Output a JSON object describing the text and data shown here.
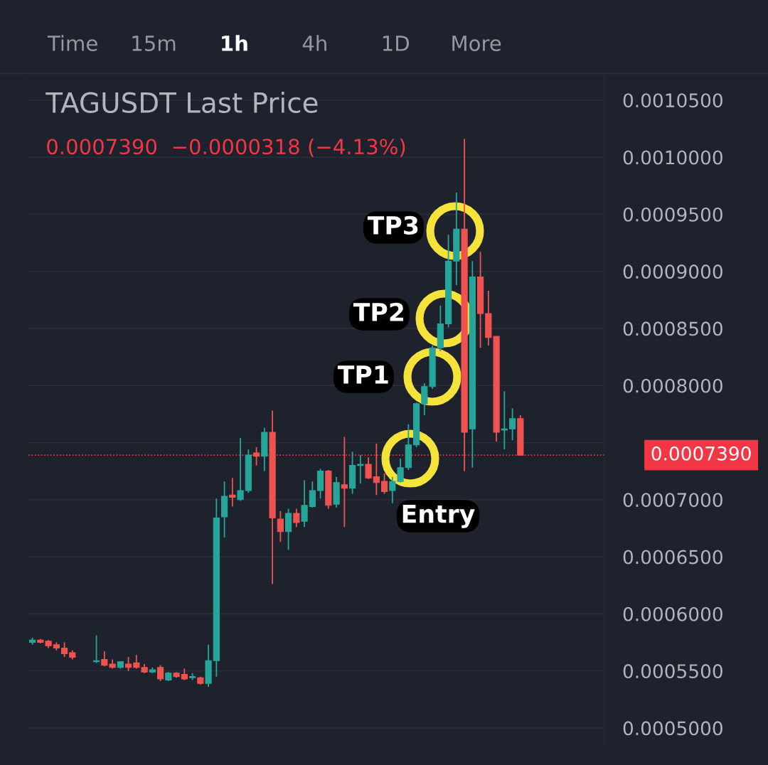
{
  "chart_data": {
    "type": "candlestick",
    "title": "TAGUSDT Last Price",
    "subtitle": "0.0007390  −0.0000318 (−4.13%)",
    "categories": [
      null,
      null,
      null,
      null,
      null,
      null,
      null,
      null,
      null,
      null,
      null,
      null,
      null,
      null,
      null,
      null,
      null,
      null,
      null,
      null,
      null,
      null,
      null,
      null,
      null,
      null,
      null,
      null,
      null,
      null,
      null,
      null,
      null,
      null,
      null,
      null,
      null,
      null,
      null,
      null,
      null,
      null,
      null,
      null,
      null,
      null,
      null,
      null,
      null,
      null,
      null,
      null,
      null,
      null,
      null,
      null,
      null,
      null,
      null,
      null,
      null,
      null,
      null,
      null,
      null,
      null,
      null,
      null,
      null,
      null,
      null,
      null
    ],
    "ohlc": [
      [
        0.000575,
        0.000579,
        0.000573,
        0.000577
      ],
      [
        0.000577,
        0.000578,
        0.000574,
        0.000575
      ],
      [
        0.000576,
        0.000577,
        0.00057,
        0.000572
      ],
      [
        0.000573,
        0.000575,
        0.000568,
        0.00057
      ],
      [
        0.00057,
        0.000575,
        0.000562,
        0.000565
      ],
      [
        0.000566,
        0.000568,
        0.00056,
        0.000562
      ],
      null,
      null,
      [
        0.000558,
        0.000581,
        0.000557,
        0.000559
      ],
      [
        0.00056,
        0.000567,
        0.000554,
        0.000555
      ],
      [
        0.000556,
        0.00056,
        0.000552,
        0.000553
      ],
      [
        0.000553,
        0.000558,
        0.000552,
        0.000558
      ],
      [
        0.000556,
        0.000562,
        0.00055,
        0.000553
      ],
      [
        0.000557,
        0.000564,
        0.000552,
        0.000553
      ],
      [
        0.000553,
        0.000556,
        0.000548,
        0.000549
      ],
      [
        0.000549,
        0.000553,
        0.000548,
        0.000551
      ],
      [
        0.000553,
        0.000555,
        0.000541,
        0.000543
      ],
      [
        0.000542,
        0.000549,
        0.000541,
        0.000548
      ],
      [
        0.000548,
        0.000549,
        0.000544,
        0.000545
      ],
      [
        0.000547,
        0.000552,
        0.000542,
        0.000543
      ],
      [
        0.000544,
        0.000548,
        0.000542,
        0.000545
      ],
      [
        0.000544,
        0.000545,
        0.000538,
        0.000539
      ],
      [
        0.000539,
        0.000573,
        0.000536,
        0.000559
      ],
      [
        0.000559,
        0.000701,
        0.000545,
        0.000684
      ],
      [
        0.000685,
        0.000716,
        0.000667,
        0.000703
      ],
      [
        0.000704,
        0.000719,
        0.000694,
        0.000702
      ],
      [
        0.0007,
        0.000754,
        0.000699,
        0.000708
      ],
      [
        0.000708,
        0.000744,
        0.000706,
        0.000739
      ],
      [
        0.000741,
        0.000746,
        0.00073,
        0.000738
      ],
      [
        0.000738,
        0.000763,
        0.000725,
        0.000759
      ],
      [
        0.000759,
        0.000778,
        0.000626,
        0.000684
      ],
      [
        0.000683,
        0.00069,
        0.000663,
        0.000672
      ],
      [
        0.000672,
        0.000692,
        0.000656,
        0.000688
      ],
      [
        0.000688,
        0.000692,
        0.000676,
        0.00068
      ],
      [
        0.000681,
        0.000717,
        0.000676,
        0.000695
      ],
      [
        0.000694,
        0.000716,
        0.000693,
        0.000708
      ],
      [
        0.000708,
        0.000727,
        0.000701,
        0.000725
      ],
      [
        0.000725,
        0.000726,
        0.000692,
        0.000695
      ],
      [
        0.000696,
        0.00072,
        0.000693,
        0.000715
      ],
      [
        0.000713,
        0.000755,
        0.000676,
        0.00071
      ],
      [
        0.00071,
        0.000742,
        0.000705,
        0.00073
      ],
      [
        0.00073,
        0.000739,
        0.000714,
        0.000731
      ],
      [
        0.000731,
        0.000737,
        0.000718,
        0.000719
      ],
      [
        0.00072,
        0.000749,
        0.000704,
        0.000715
      ],
      [
        0.000716,
        0.000723,
        0.000705,
        0.000707
      ],
      [
        0.000708,
        0.00072,
        0.000697,
        0.000716
      ],
      [
        0.000716,
        0.000736,
        0.000715,
        0.000728
      ],
      [
        0.000728,
        0.000766,
        0.000726,
        0.000748
      ],
      [
        0.000748,
        0.000785,
        0.000746,
        0.000784
      ],
      [
        0.000784,
        0.000802,
        0.000774,
        0.000799
      ],
      [
        0.000799,
        0.000835,
        0.000797,
        0.000833
      ],
      [
        0.000833,
        0.00087,
        0.00083,
        0.000854
      ],
      [
        0.000854,
        0.000932,
        0.000851,
        0.000909
      ],
      [
        0.000909,
        0.000969,
        0.000888,
        0.000937
      ],
      [
        0.000937,
        0.001016,
        0.000725,
        0.000759
      ],
      [
        0.000762,
        0.000909,
        0.000728,
        0.000895
      ],
      [
        0.000895,
        0.000917,
        0.000833,
        0.000863
      ],
      [
        0.000863,
        0.000883,
        0.000835,
        0.000842
      ],
      [
        0.000843,
        0.000843,
        0.000751,
        0.000759
      ],
      [
        0.000761,
        0.000795,
        0.000744,
        0.000762
      ],
      [
        0.000762,
        0.00078,
        0.000752,
        0.000771
      ],
      [
        0.000771,
        0.000774,
        0.000739,
        0.000739
      ],
      null,
      null,
      null,
      null,
      null,
      null,
      null,
      null,
      null,
      null
    ],
    "colors": [
      "#26a69a",
      "#ef5350",
      "#ef5350",
      "#ef5350",
      "#ef5350",
      "#ef5350",
      null,
      null,
      "#26a69a",
      "#ef5350",
      "#ef5350",
      "#26a69a",
      "#ef5350",
      "#ef5350",
      "#ef5350",
      "#26a69a",
      "#ef5350",
      "#26a69a",
      "#ef5350",
      "#ef5350",
      "#26a69a",
      "#ef5350",
      "#26a69a",
      "#26a69a",
      "#26a69a",
      "#ef5350",
      "#26a69a",
      "#26a69a",
      "#ef5350",
      "#26a69a",
      "#ef5350",
      "#ef5350",
      "#26a69a",
      "#ef5350",
      "#26a69a",
      "#26a69a",
      "#26a69a",
      "#ef5350",
      "#26a69a",
      "#ef5350",
      "#26a69a",
      "#26a69a",
      "#ef5350",
      "#ef5350",
      "#ef5350",
      "#26a69a",
      "#26a69a",
      "#26a69a",
      "#26a69a",
      "#26a69a",
      "#26a69a",
      "#26a69a",
      "#26a69a",
      "#26a69a",
      "#ef5350",
      "#26a69a",
      "#ef5350",
      "#ef5350",
      "#ef5350",
      "#26a69a",
      "#26a69a",
      "#ef5350",
      null,
      null,
      null,
      null,
      null,
      null,
      null,
      null,
      null,
      null
    ],
    "ylim": [
      0.000487,
      0.001072
    ],
    "yticks": [
      {
        "value": 0.0005,
        "label": "0.0005000"
      },
      {
        "value": 0.00055,
        "label": "0.0005500"
      },
      {
        "value": 0.0006,
        "label": "0.0006000"
      },
      {
        "value": 0.00065,
        "label": "0.0006500"
      },
      {
        "value": 0.0007,
        "label": "0.0007000"
      },
      {
        "value": 0.00075,
        "label": null
      },
      {
        "value": 0.0008,
        "label": "0.0008000"
      },
      {
        "value": 0.00085,
        "label": "0.0008500"
      },
      {
        "value": 0.0009,
        "label": "0.0009000"
      },
      {
        "value": 0.00095,
        "label": "0.0009500"
      },
      {
        "value": 0.001,
        "label": "0.0010000"
      },
      {
        "value": 0.00105,
        "label": "0.0010500"
      }
    ],
    "grid": "y",
    "ref_lines": [
      {
        "axis": "y",
        "value": 0.000739,
        "label": "0.0007390",
        "color": "#f23645",
        "line_style": "dotted"
      }
    ],
    "annotations": [
      "Time",
      "15m",
      "1h",
      "4h",
      "1D",
      "More",
      "TP3",
      "TP2",
      "TP1",
      "Entry"
    ]
  }
}
